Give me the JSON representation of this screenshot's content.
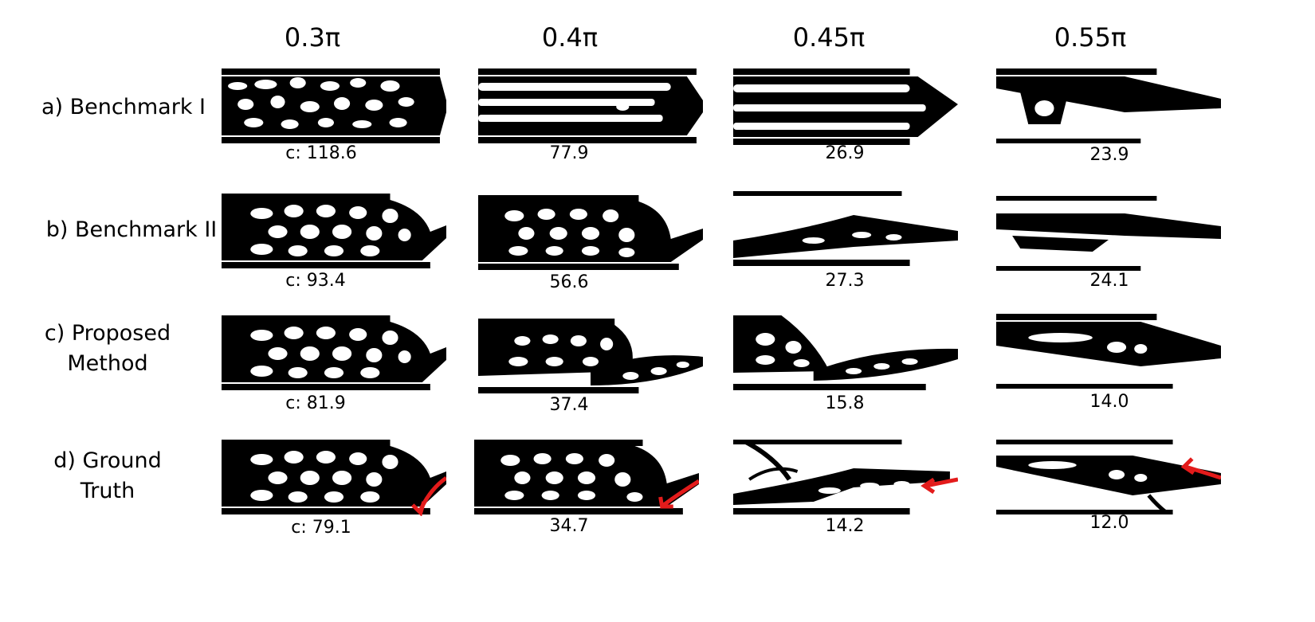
{
  "columns": [
    "0.3π",
    "0.4π",
    "0.45π",
    "0.55π"
  ],
  "rows": [
    {
      "label_line1": "a) Benchmark I",
      "label_line2": "",
      "values": [
        "c: 118.6",
        "77.9",
        "26.9",
        "23.9"
      ]
    },
    {
      "label_line1": "b) Benchmark II",
      "label_line2": "",
      "values": [
        "c: 93.4",
        "56.6",
        "27.3",
        "24.1"
      ]
    },
    {
      "label_line1": "c) Proposed",
      "label_line2": "Method",
      "values": [
        "c: 81.9",
        "37.4",
        "15.8",
        "14.0"
      ]
    },
    {
      "label_line1": "d) Ground",
      "label_line2": "Truth",
      "values": [
        "c: 79.1",
        "34.7",
        "14.2",
        "12.0"
      ]
    }
  ],
  "colors": {
    "structure": "#000000",
    "background": "#ffffff",
    "arrow": "#e31b1b"
  }
}
